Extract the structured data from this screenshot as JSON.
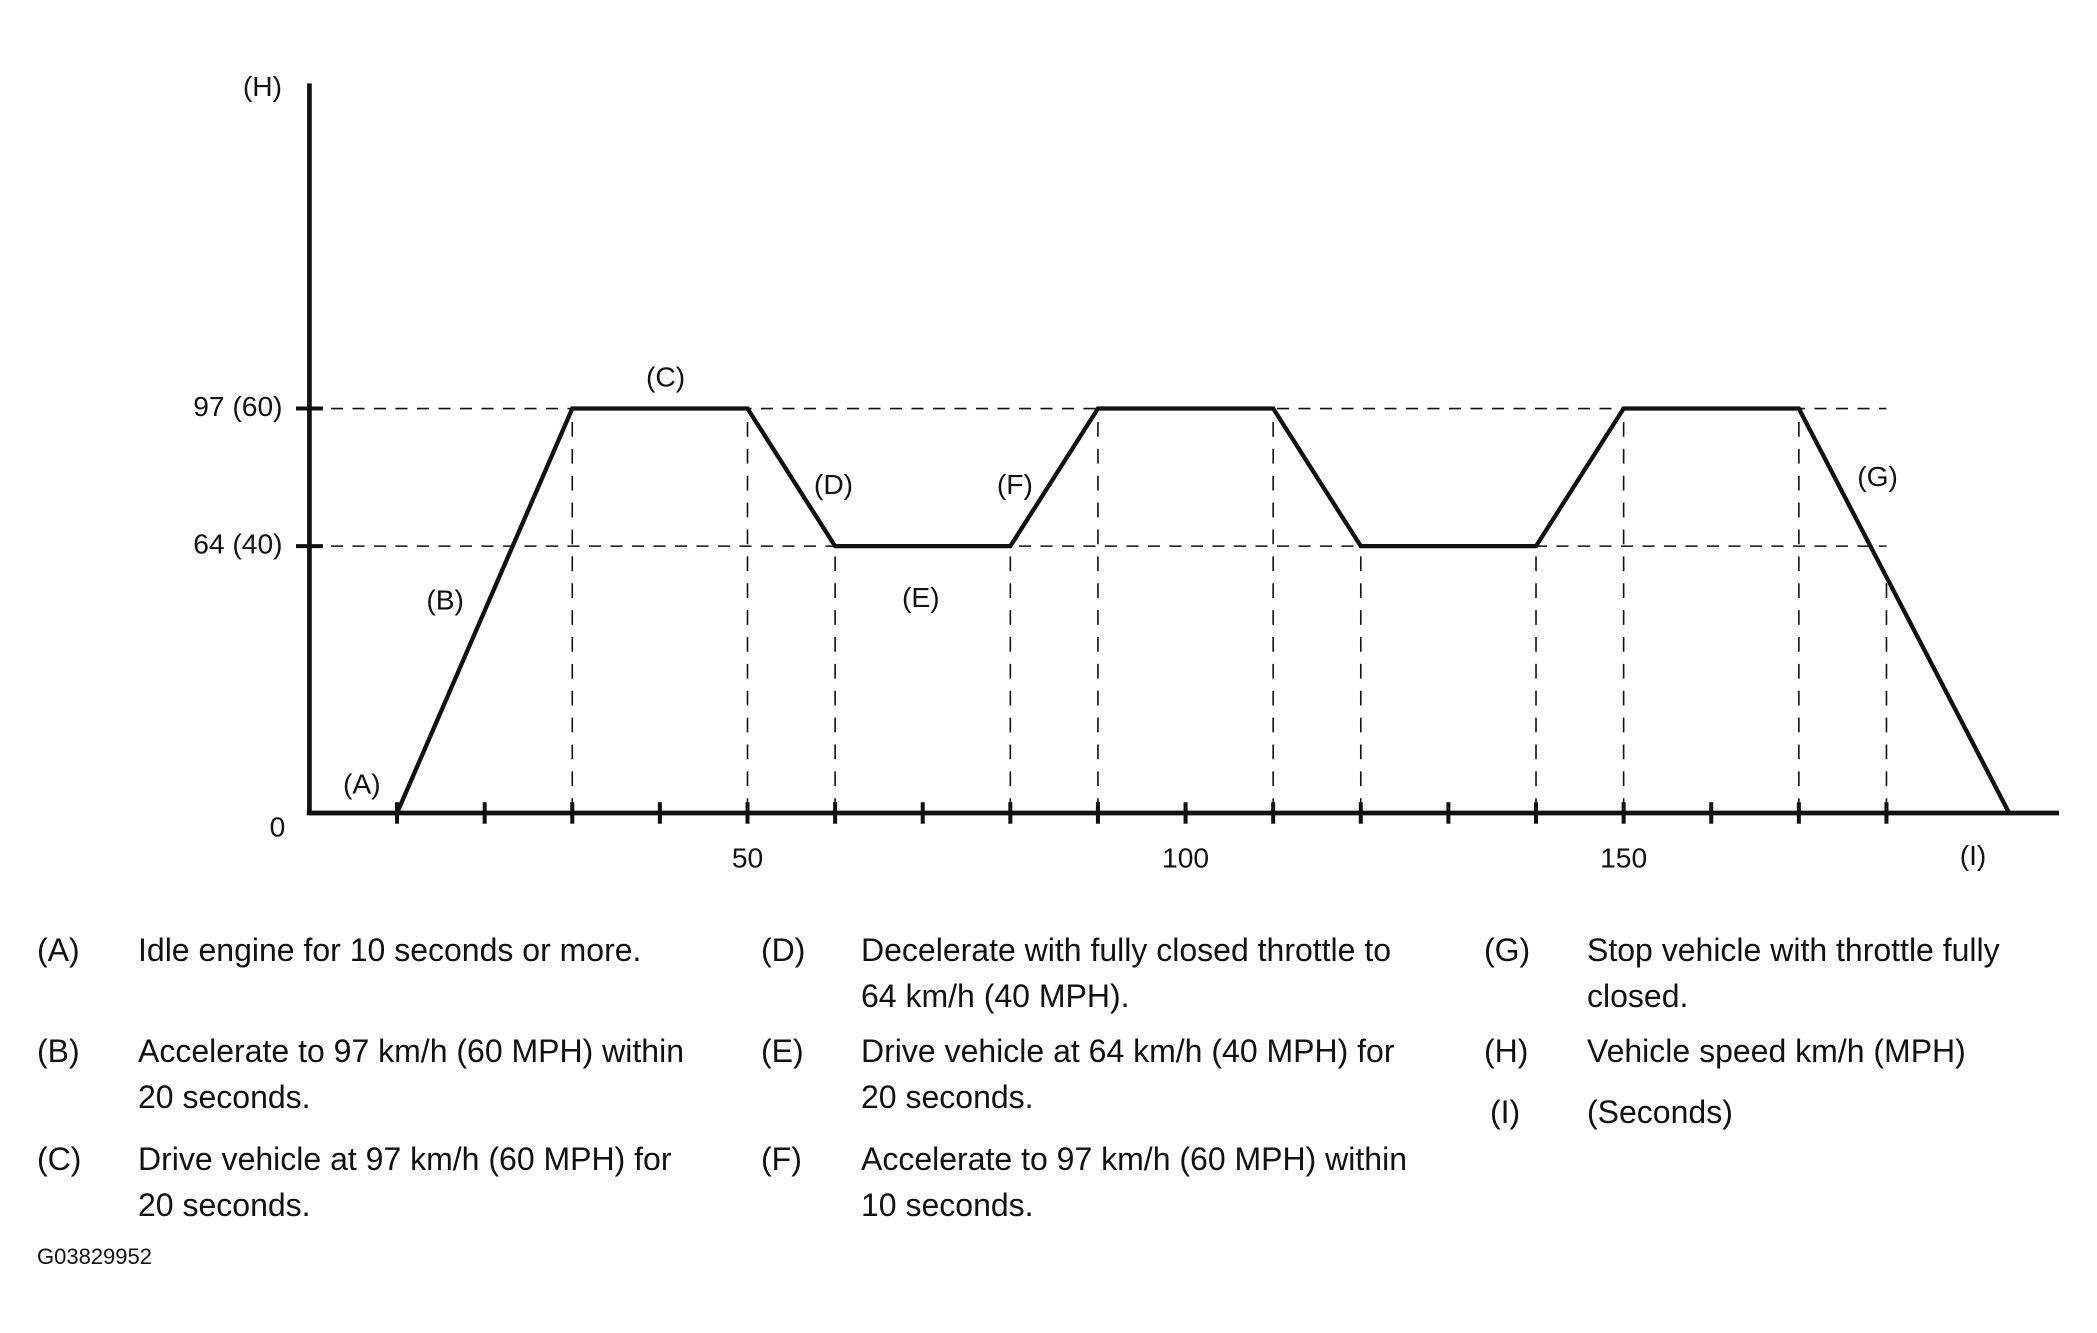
{
  "chart_data": {
    "type": "line",
    "y_label": "(H)",
    "x_label": "(I)",
    "x": [
      0,
      10,
      30,
      50,
      60,
      80,
      90,
      110,
      120,
      140,
      150,
      170,
      194
    ],
    "series": [
      {
        "name": "Vehicle speed",
        "color": "#111111",
        "values": [
          0,
          0,
          97,
          97,
          64,
          64,
          97,
          97,
          64,
          64,
          97,
          97,
          0
        ]
      }
    ],
    "xlim": [
      0,
      200
    ],
    "xticks": [
      50,
      100,
      150
    ],
    "minor_xticks": [
      10,
      20,
      30,
      40,
      50,
      60,
      70,
      80,
      90,
      100,
      110,
      120,
      130,
      140,
      150,
      160,
      170,
      180
    ],
    "x_guides": [
      30,
      50,
      60,
      80,
      90,
      110,
      120,
      140,
      150,
      170,
      180
    ],
    "ylim": [
      0,
      175
    ],
    "yticks": [
      0,
      {
        "value": 64,
        "label": "64 (40)"
      },
      {
        "value": 97,
        "label": "97 (60)"
      }
    ],
    "annotations": [
      "(A)",
      "(B)",
      "(C)",
      "(D)",
      "(E)",
      "(F)",
      "(G)"
    ],
    "legend_items": [
      {
        "key": "(A)",
        "text": "Idle engine for 10 seconds or more."
      },
      {
        "key": "(B)",
        "text": "Accelerate to 97 km/h (60 MPH) within 20 seconds."
      },
      {
        "key": "(C)",
        "text": "Drive vehicle at 97 km/h (60 MPH) for 20 seconds."
      },
      {
        "key": "(D)",
        "text": "Decelerate with fully closed throttle to 64 km/h (40 MPH)."
      },
      {
        "key": "(E)",
        "text": "Drive vehicle at 64 km/h (40 MPH) for 20 seconds."
      },
      {
        "key": "(F)",
        "text": "Accelerate to 97 km/h (60 MPH) within 10 seconds."
      },
      {
        "key": "(G)",
        "text": "Stop vehicle with throttle fully closed."
      },
      {
        "key": "(H)",
        "text": "Vehicle speed km/h (MPH)"
      },
      {
        "key": "(I)",
        "text": "(Seconds)"
      }
    ],
    "figure_id": "G03829952"
  }
}
